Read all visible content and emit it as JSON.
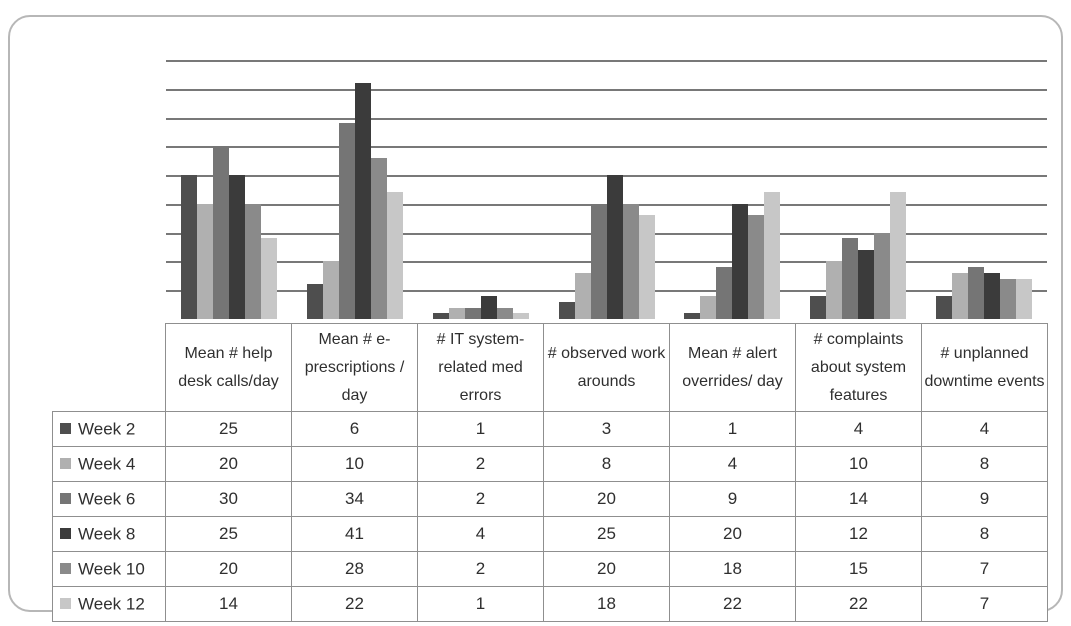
{
  "chart_data": {
    "type": "bar",
    "title": "",
    "xlabel": "",
    "ylabel": "",
    "ylim": [
      0,
      45
    ],
    "gridline_step": 5,
    "grid": true,
    "legend_position": "table-left",
    "categories": [
      "Mean #  help desk calls/day",
      "Mean # e-prescriptions / day",
      "# IT system-related med errors",
      "# observed work arounds",
      "Mean # alert overrides/ day",
      "# complaints about system features",
      "# unplanned downtime events"
    ],
    "series": [
      {
        "name": "Week 2",
        "color": "#4e4e4e",
        "values": [
          25,
          6,
          1,
          3,
          1,
          4,
          4
        ]
      },
      {
        "name": "Week 4",
        "color": "#b0b0b0",
        "values": [
          20,
          10,
          2,
          8,
          4,
          10,
          8
        ]
      },
      {
        "name": "Week 6",
        "color": "#757575",
        "values": [
          30,
          34,
          2,
          20,
          9,
          14,
          9
        ]
      },
      {
        "name": "Week 8",
        "color": "#3b3b3b",
        "values": [
          25,
          41,
          4,
          25,
          20,
          12,
          8
        ]
      },
      {
        "name": "Week 10",
        "color": "#8a8a8a",
        "values": [
          20,
          28,
          2,
          20,
          18,
          15,
          7
        ]
      },
      {
        "name": "Week 12",
        "color": "#c7c7c7",
        "values": [
          14,
          22,
          1,
          18,
          22,
          22,
          7
        ]
      }
    ]
  },
  "colors": {
    "gridline": "#787878",
    "table_border": "#8f8f8f",
    "frame_border": "#b7b7b7",
    "text": "#2f2f2f"
  }
}
